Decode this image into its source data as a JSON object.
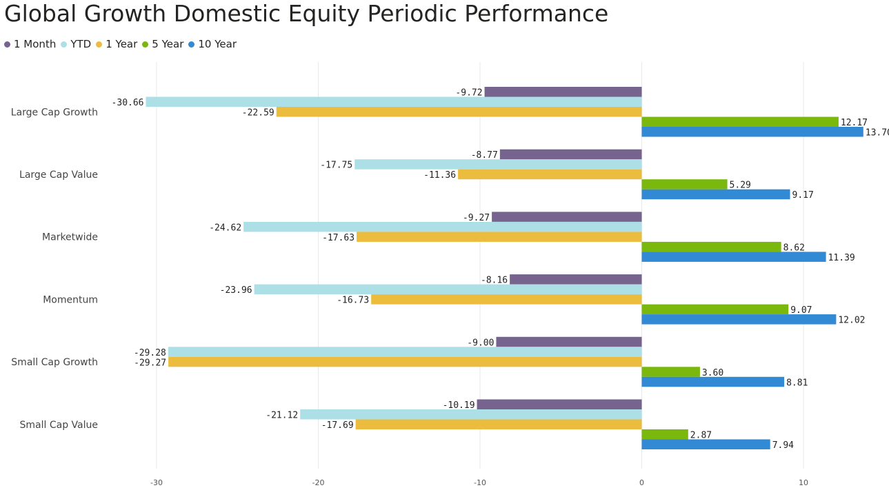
{
  "title": "Global Growth Domestic Equity Periodic Performance",
  "colors": {
    "1 Month": "#76648f",
    "YTD": "#addfe7",
    "1 Year": "#ebbc3e",
    "5 Year": "#7ab80e",
    "10 Year": "#3289d4"
  },
  "chart_data": {
    "type": "bar",
    "orientation": "horizontal",
    "title": "Global Growth Domestic Equity Periodic Performance",
    "categories": [
      "Large Cap Growth",
      "Large Cap Value",
      "Marketwide",
      "Momentum",
      "Small Cap Growth",
      "Small Cap Value"
    ],
    "series": [
      {
        "name": "1 Month",
        "values": [
          -9.72,
          -8.77,
          -9.27,
          -8.16,
          -9.0,
          -10.19
        ]
      },
      {
        "name": "YTD",
        "values": [
          -30.66,
          -17.75,
          -24.62,
          -23.96,
          -29.28,
          -21.12
        ]
      },
      {
        "name": "1 Year",
        "values": [
          -22.59,
          -11.36,
          -17.63,
          -16.73,
          -29.27,
          -17.69
        ]
      },
      {
        "name": "5 Year",
        "values": [
          12.17,
          5.29,
          8.62,
          9.07,
          3.6,
          2.87
        ]
      },
      {
        "name": "10 Year",
        "values": [
          13.7,
          9.17,
          11.39,
          12.02,
          8.81,
          7.94
        ]
      }
    ],
    "x_ticks": [
      -30,
      -20,
      -10,
      0,
      10
    ],
    "xlim": [
      -30.66,
      13.7
    ],
    "grid": true,
    "legend_position": "top-left"
  }
}
